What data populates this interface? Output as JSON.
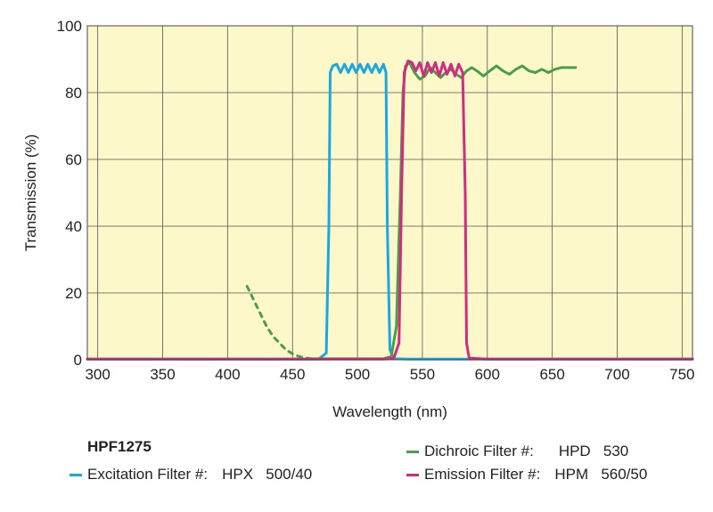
{
  "chart_data": {
    "type": "line",
    "title": "",
    "xlabel": "Wavelength (nm)",
    "ylabel": "Transmission (%)",
    "xlim": [
      292,
      758
    ],
    "ylim": [
      0,
      100
    ],
    "xticks": [
      300,
      350,
      400,
      450,
      500,
      550,
      600,
      650,
      700,
      750
    ],
    "yticks": [
      0,
      20,
      40,
      60,
      80,
      100
    ],
    "grid": true,
    "background": "#fdf8c9",
    "series": [
      {
        "name": "Excitation Filter #:",
        "id": "excitation",
        "color": "#1aa8e0",
        "style": "solid",
        "points": [
          [
            292,
            0.2
          ],
          [
            470,
            0.2
          ],
          [
            476,
            2
          ],
          [
            478,
            40
          ],
          [
            479,
            86
          ],
          [
            481,
            88
          ],
          [
            484,
            88.5
          ],
          [
            487,
            86
          ],
          [
            490,
            88.5
          ],
          [
            493,
            86
          ],
          [
            496,
            88.5
          ],
          [
            499,
            86
          ],
          [
            502,
            88.5
          ],
          [
            505,
            86
          ],
          [
            508,
            88.5
          ],
          [
            511,
            86
          ],
          [
            514,
            88.5
          ],
          [
            517,
            86
          ],
          [
            520,
            88.5
          ],
          [
            522,
            86
          ],
          [
            523,
            40
          ],
          [
            525,
            3
          ],
          [
            528,
            0.3
          ],
          [
            540,
            0.2
          ],
          [
            560,
            0.2
          ],
          [
            580,
            0.2
          ],
          [
            620,
            0.2
          ],
          [
            700,
            0.2
          ],
          [
            758,
            0.2
          ]
        ]
      },
      {
        "name": "Dichroic Filter #:",
        "id": "dichroic-dashed",
        "color": "#4a9e4a",
        "style": "dashed",
        "points": [
          [
            415,
            22
          ],
          [
            420,
            18
          ],
          [
            425,
            14
          ],
          [
            430,
            10
          ],
          [
            435,
            7
          ],
          [
            440,
            5
          ],
          [
            445,
            3
          ],
          [
            450,
            1.8
          ],
          [
            455,
            1
          ],
          [
            460,
            0.6
          ],
          [
            465,
            0.3
          ]
        ]
      },
      {
        "name": "Dichroic Filter #:",
        "id": "dichroic",
        "color": "#4a9e4a",
        "style": "solid",
        "points": [
          [
            465,
            0.3
          ],
          [
            520,
            0.3
          ],
          [
            526,
            1
          ],
          [
            530,
            10
          ],
          [
            533,
            50
          ],
          [
            535,
            80
          ],
          [
            537,
            88
          ],
          [
            540,
            89
          ],
          [
            544,
            86
          ],
          [
            548,
            84
          ],
          [
            552,
            85
          ],
          [
            556,
            87.5
          ],
          [
            560,
            86
          ],
          [
            564,
            84.5
          ],
          [
            568,
            86
          ],
          [
            572,
            87
          ],
          [
            576,
            85.5
          ],
          [
            580,
            84.5
          ],
          [
            584,
            86.5
          ],
          [
            588,
            87.5
          ],
          [
            592,
            86.5
          ],
          [
            597,
            85
          ],
          [
            602,
            86.5
          ],
          [
            607,
            88
          ],
          [
            612,
            86.5
          ],
          [
            617,
            85.5
          ],
          [
            622,
            87
          ],
          [
            627,
            88
          ],
          [
            632,
            86.5
          ],
          [
            637,
            86
          ],
          [
            642,
            87
          ],
          [
            647,
            86
          ],
          [
            652,
            87
          ],
          [
            657,
            87.5
          ],
          [
            662,
            87.5
          ],
          [
            668,
            87.5
          ]
        ]
      },
      {
        "name": "Emission Filter #:",
        "id": "emission",
        "color": "#d02c80",
        "style": "solid",
        "points": [
          [
            292,
            0.2
          ],
          [
            520,
            0.2
          ],
          [
            528,
            0.5
          ],
          [
            532,
            5
          ],
          [
            534,
            50
          ],
          [
            536,
            86
          ],
          [
            539,
            89.5
          ],
          [
            542,
            89
          ],
          [
            545,
            86.5
          ],
          [
            548,
            89
          ],
          [
            551,
            85
          ],
          [
            554,
            89
          ],
          [
            557,
            86
          ],
          [
            560,
            89
          ],
          [
            563,
            85
          ],
          [
            566,
            89
          ],
          [
            569,
            85.5
          ],
          [
            572,
            88.5
          ],
          [
            575,
            85
          ],
          [
            578,
            88.5
          ],
          [
            581,
            86
          ],
          [
            583,
            50
          ],
          [
            584,
            5
          ],
          [
            586,
            0.5
          ],
          [
            600,
            0.2
          ],
          [
            700,
            0.2
          ],
          [
            758,
            0.2
          ]
        ]
      }
    ]
  },
  "legend": {
    "title": "HPF1275",
    "items": [
      {
        "id": "excitation",
        "label": "Excitation Filter #:",
        "value": "HPX   500/40",
        "color": "#1aa8e0"
      },
      {
        "id": "dichroic",
        "label": "Dichroic Filter #:",
        "value": "HPD   530",
        "color": "#4a9e4a"
      },
      {
        "id": "emission",
        "label": "Emission Filter #:",
        "value": "HPM   560/50",
        "color": "#d02c80"
      }
    ]
  }
}
